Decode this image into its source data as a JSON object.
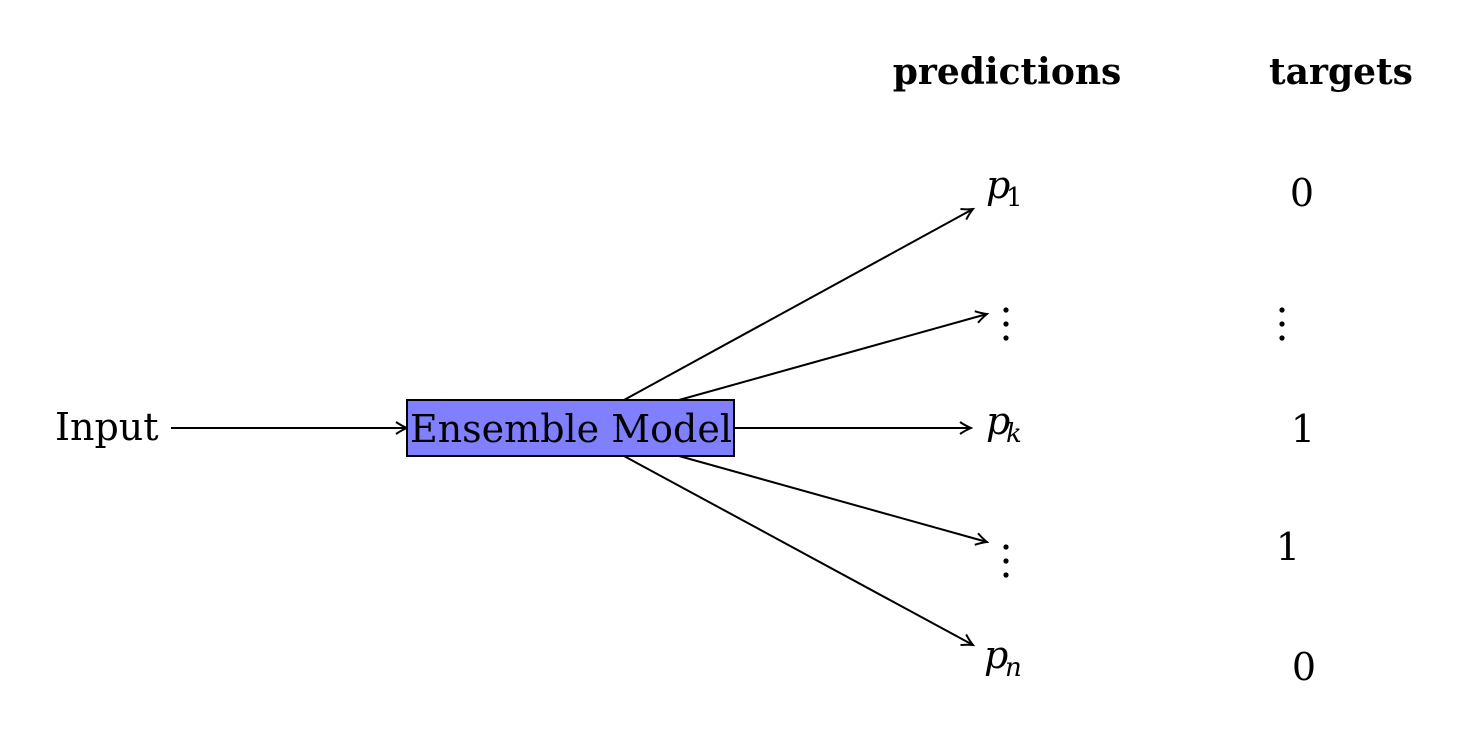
{
  "headers": {
    "predictions": "predictions",
    "targets": "targets"
  },
  "input_label": "Input",
  "model": {
    "label": "Ensemble Model",
    "fill": "#8080ff"
  },
  "predictions": [
    {
      "base": "p",
      "sub": "1"
    },
    {
      "base": "p",
      "sub": "k"
    },
    {
      "base": "p",
      "sub": "n"
    }
  ],
  "targets": [
    "0",
    "1",
    "1",
    "0"
  ]
}
